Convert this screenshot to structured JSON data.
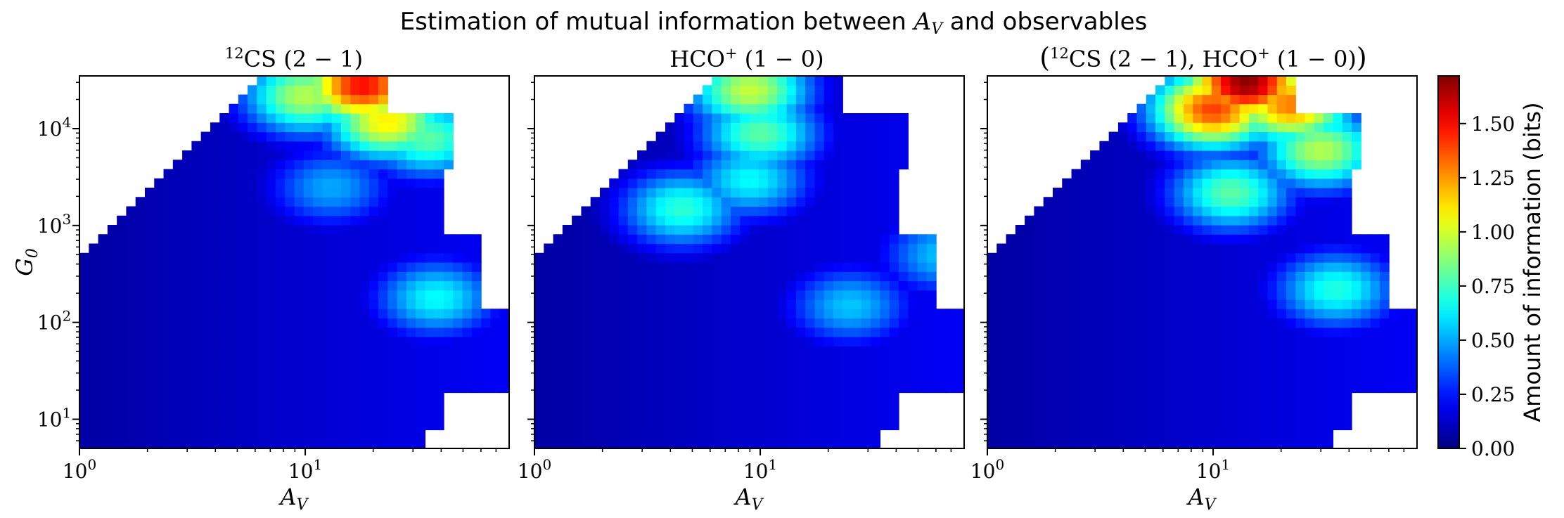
{
  "suptitle": "Estimation of mutual information between A_V and observables",
  "suptitle_prefix": "Estimation of mutual information between ",
  "suptitle_var": "A",
  "suptitle_var_sub": "V",
  "suptitle_suffix": " and observables",
  "colorbar": {
    "label": "Amount of information (bits)",
    "colormap": "jet",
    "vmin": 0.0,
    "vmax": 1.72,
    "ticks": [
      "0.00",
      "0.25",
      "0.50",
      "0.75",
      "1.00",
      "1.25",
      "1.50"
    ],
    "tick_values": [
      0.0,
      0.25,
      0.5,
      0.75,
      1.0,
      1.25,
      1.5
    ]
  },
  "chart_data": [
    {
      "type": "heatmap",
      "title": "12CS (2 − 1)",
      "title_parts": {
        "sup": "12",
        "main": "CS",
        "trans": " (2 − 1)"
      },
      "xlabel": "A_V",
      "xlabel_main": "A",
      "xlabel_sub": "V",
      "ylabel": "G_0",
      "ylabel_main": "G",
      "ylabel_sub": "0",
      "xscale": "log",
      "yscale": "log",
      "xlim": [
        1,
        80
      ],
      "ylim": [
        5,
        35000
      ],
      "xticks": [
        {
          "base": "10",
          "exp": "0",
          "value": 1
        },
        {
          "base": "10",
          "exp": "1",
          "value": 10
        }
      ],
      "yticks": [
        {
          "base": "10",
          "exp": "1",
          "value": 10
        },
        {
          "base": "10",
          "exp": "2",
          "value": 100
        },
        {
          "base": "10",
          "exp": "3",
          "value": 1000
        },
        {
          "base": "10",
          "exp": "4",
          "value": 10000
        }
      ],
      "grid": false,
      "peaks": [
        {
          "Av": 18,
          "G0": 28000,
          "value": 1.5
        },
        {
          "Av": 23,
          "G0": 12000,
          "value": 1.1
        },
        {
          "Av": 10,
          "G0": 22000,
          "value": 0.95
        },
        {
          "Av": 35,
          "G0": 8000,
          "value": 0.8
        },
        {
          "Av": 38,
          "G0": 180,
          "value": 0.65
        },
        {
          "Av": 13,
          "G0": 2500,
          "value": 0.5
        }
      ]
    },
    {
      "type": "heatmap",
      "title": "HCO+ (1 − 0)",
      "title_parts": {
        "main": "HCO",
        "sup": "+",
        "trans": " (1 − 0)"
      },
      "xlabel": "A_V",
      "xlabel_main": "A",
      "xlabel_sub": "V",
      "xscale": "log",
      "yscale": "log",
      "xlim": [
        1,
        80
      ],
      "ylim": [
        5,
        35000
      ],
      "xticks": [
        {
          "base": "10",
          "exp": "0",
          "value": 1
        },
        {
          "base": "10",
          "exp": "1",
          "value": 10
        }
      ],
      "grid": false,
      "peaks": [
        {
          "Av": 9,
          "G0": 25000,
          "value": 0.98
        },
        {
          "Av": 10,
          "G0": 9000,
          "value": 0.8
        },
        {
          "Av": 4.5,
          "G0": 1500,
          "value": 0.72
        },
        {
          "Av": 9,
          "G0": 3000,
          "value": 0.65
        },
        {
          "Av": 25,
          "G0": 150,
          "value": 0.55
        },
        {
          "Av": 65,
          "G0": 500,
          "value": 0.55
        }
      ]
    },
    {
      "type": "heatmap",
      "title": "(12CS (2 − 1), HCO+ (1 − 0))",
      "title_parts": {
        "sup1": "12",
        "main1": "CS",
        "trans1": " (2 − 1), ",
        "main2": "HCO",
        "sup2": "+",
        "trans2": " (1 − 0)"
      },
      "xlabel": "A_V",
      "xlabel_main": "A",
      "xlabel_sub": "V",
      "xscale": "log",
      "yscale": "log",
      "xlim": [
        1,
        80
      ],
      "ylim": [
        5,
        35000
      ],
      "xticks": [
        {
          "base": "10",
          "exp": "0",
          "value": 1
        },
        {
          "base": "10",
          "exp": "1",
          "value": 10
        }
      ],
      "grid": false,
      "peaks": [
        {
          "Av": 14,
          "G0": 30000,
          "value": 1.7
        },
        {
          "Av": 10,
          "G0": 16000,
          "value": 1.4
        },
        {
          "Av": 22,
          "G0": 18000,
          "value": 1.3
        },
        {
          "Av": 30,
          "G0": 6000,
          "value": 0.95
        },
        {
          "Av": 12,
          "G0": 2200,
          "value": 0.8
        },
        {
          "Av": 35,
          "G0": 220,
          "value": 0.7
        }
      ]
    }
  ]
}
